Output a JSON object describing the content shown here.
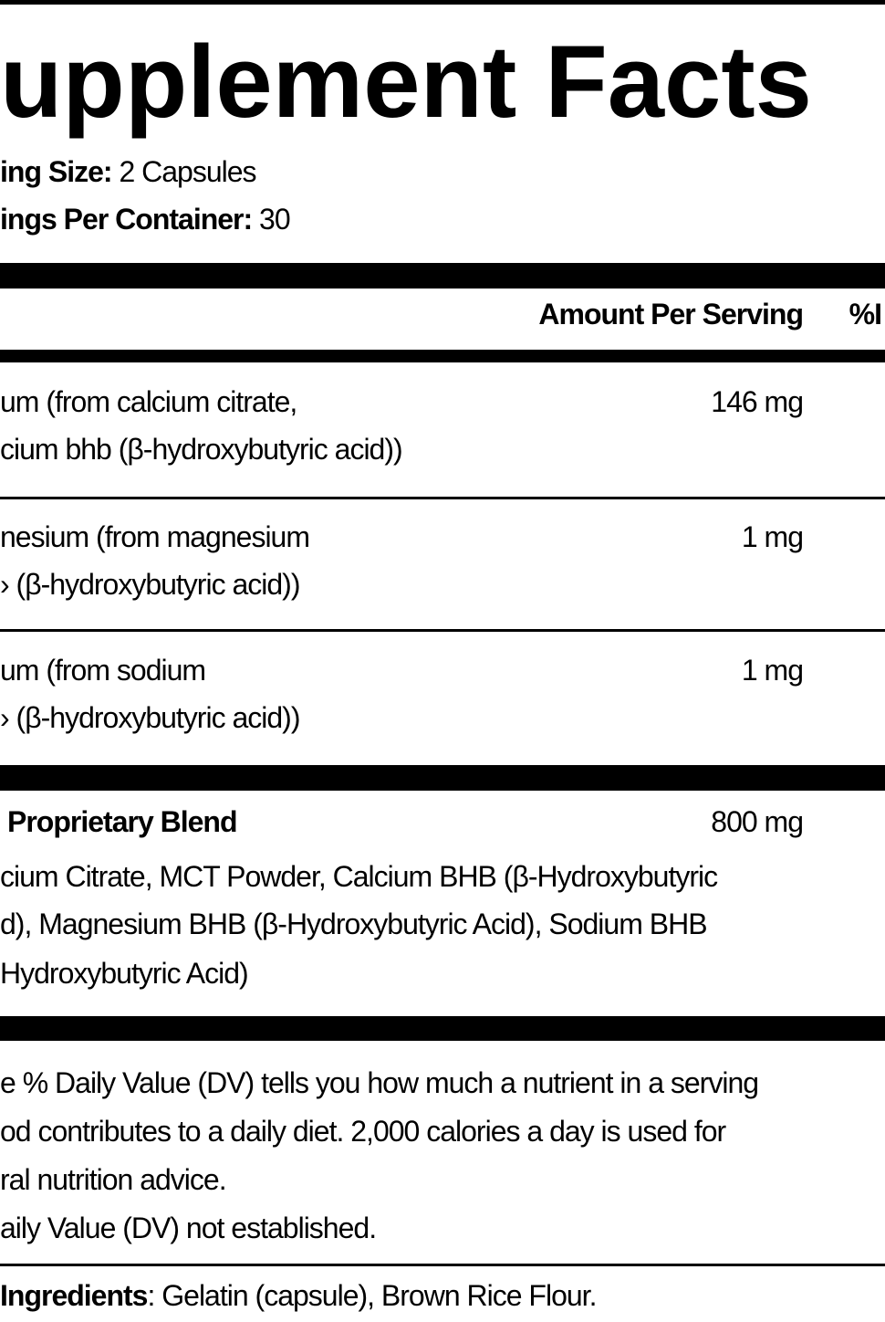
{
  "title": "upplement Facts",
  "serving": {
    "size_label": "ing Size:",
    "size_value": "2 Capsules",
    "per_container_label": "ings Per Container:",
    "per_container_value": "30"
  },
  "header": {
    "amount": "Amount Per Serving",
    "dv": "%I"
  },
  "nutrients": [
    {
      "line1": "um (from calcium citrate,",
      "line2": "cium bhb (β-hydroxybutyric acid))",
      "amount": "146 mg"
    },
    {
      "line1": "nesium (from magnesium",
      "line2": "› (β-hydroxybutyric acid))",
      "amount": "1 mg"
    },
    {
      "line1": "um (from sodium",
      "line2": "› (β-hydroxybutyric acid))",
      "amount": "1 mg"
    }
  ],
  "blend": {
    "name": "Proprietary Blend",
    "amount": "800 mg",
    "lines": [
      "cium Citrate, MCT Powder, Calcium BHB (β-Hydroxybutyric",
      "d), Magnesium BHB (β-Hydroxybutyric Acid), Sodium BHB",
      "Hydroxybutyric Acid)"
    ]
  },
  "footnote": {
    "lines": [
      "e % Daily Value (DV) tells you how much a nutrient in a serving",
      "od contributes to a daily diet. 2,000 calories a day is used for",
      "ral nutrition advice.",
      "aily Value (DV) not established."
    ]
  },
  "other_ingredients": {
    "label": "Ingredients",
    "value": ": Gelatin (capsule), Brown Rice Flour."
  }
}
